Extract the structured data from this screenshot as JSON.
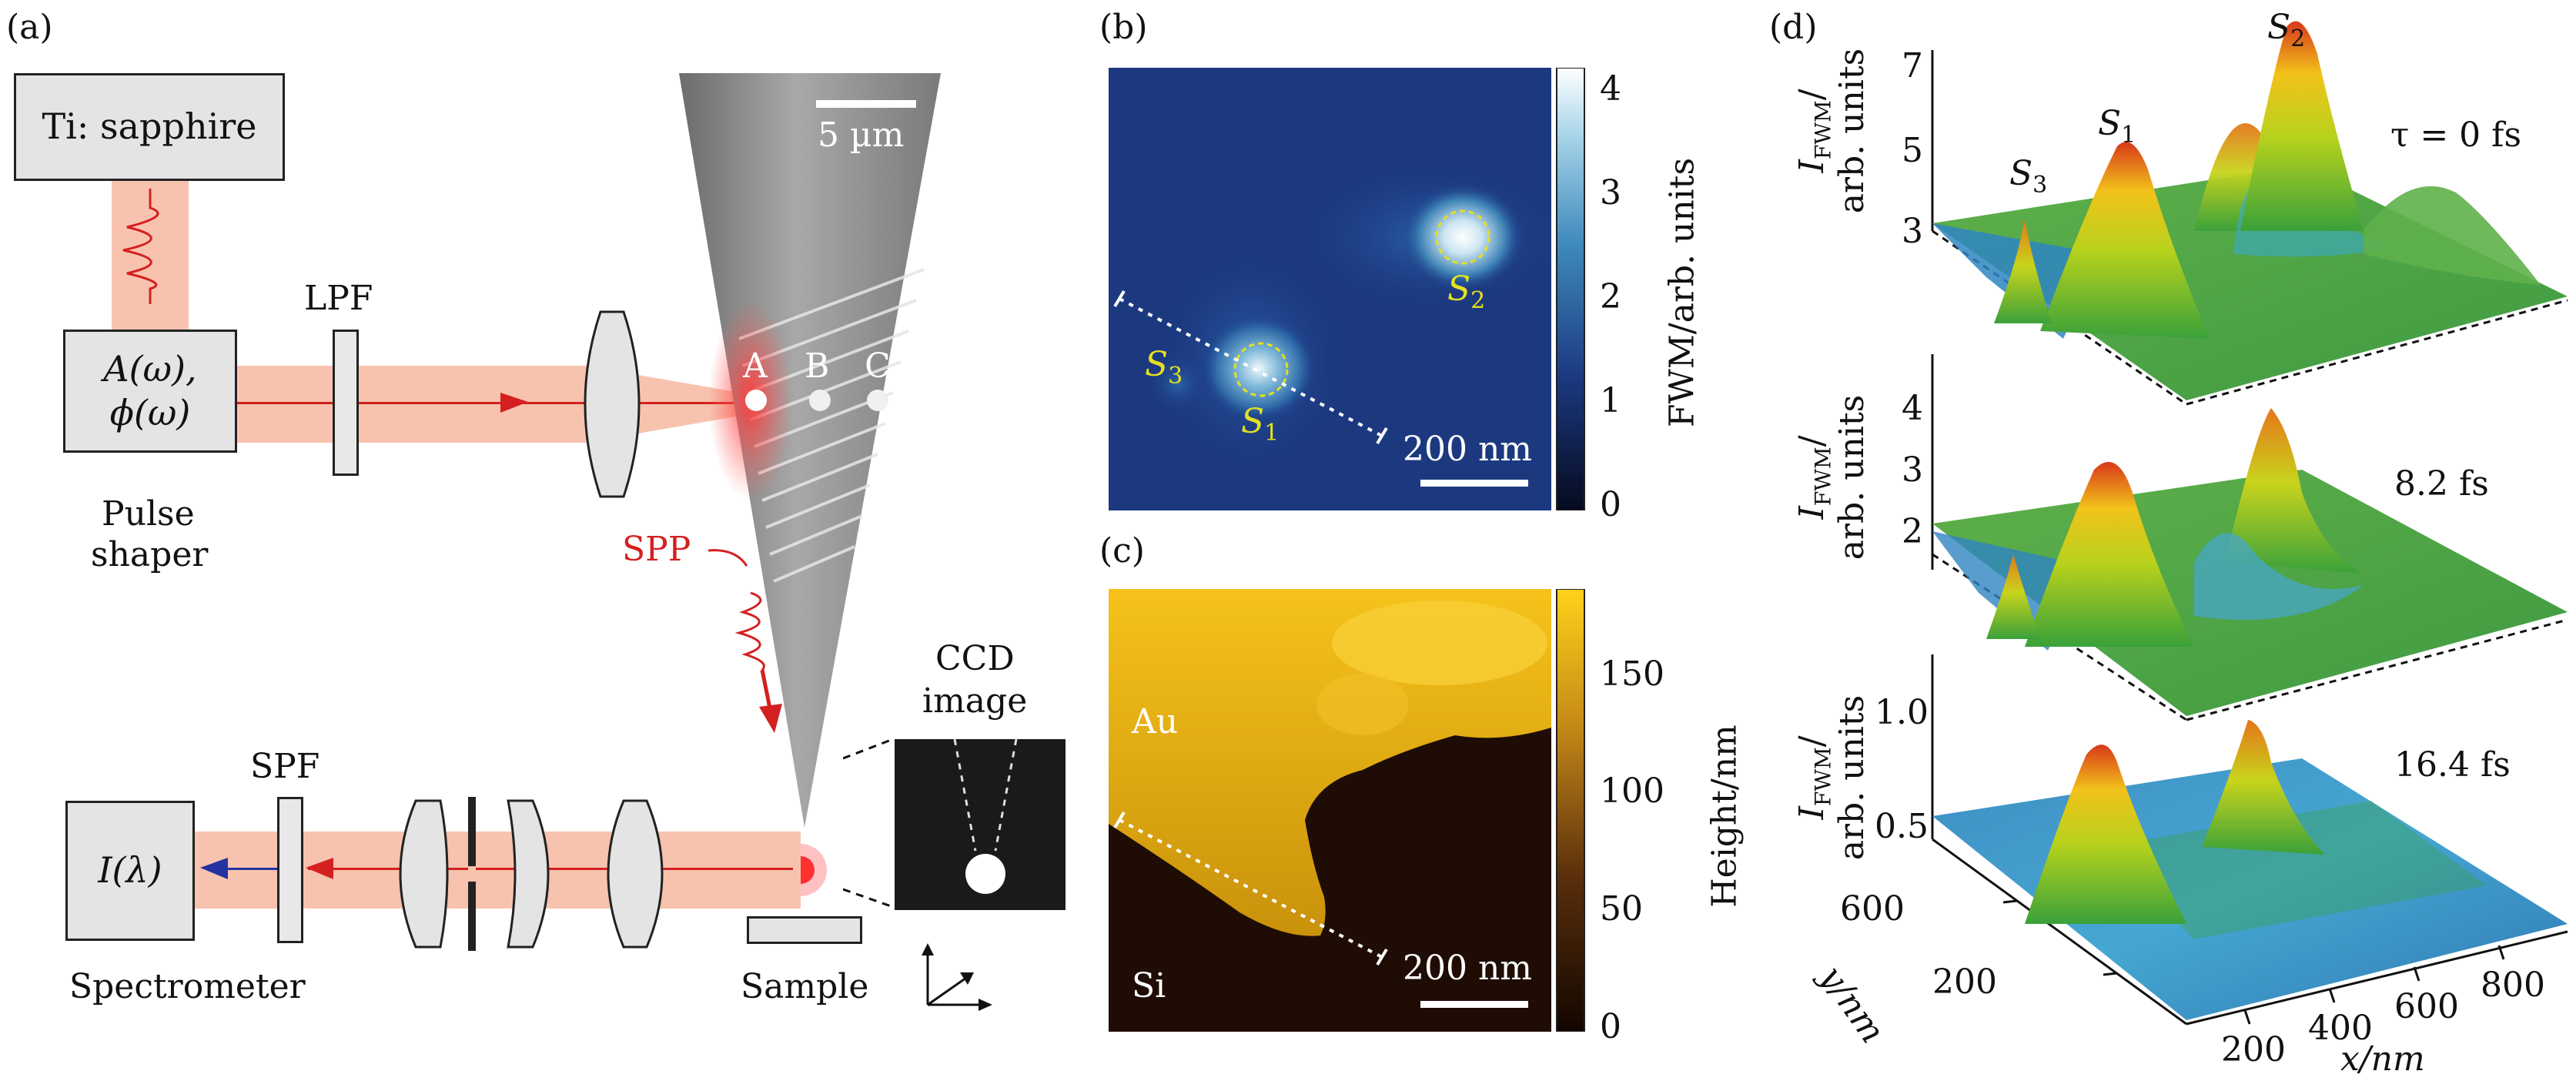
{
  "panel_labels": {
    "a": "(a)",
    "b": "(b)",
    "c": "(c)",
    "d": "(d)"
  },
  "setup": {
    "laser": "Ti: sapphire",
    "lpf": "LPF",
    "shaper_line1": "A(ω),",
    "shaper_line2": "ϕ(ω)",
    "shaper_caption_1": "Pulse",
    "shaper_caption_2": "shaper",
    "spp": "SPP",
    "scale_5um": "5 µm",
    "point_a": "A",
    "point_b": "B",
    "point_c": "C",
    "ccd_1": "CCD",
    "ccd_2": "image",
    "spf": "SPF",
    "spectrometer_box": "I(λ)",
    "spectrometer": "Spectrometer",
    "sample": "Sample"
  },
  "map_b": {
    "colorbar_label": "FWM/arb. units",
    "ticks": [
      "0",
      "1",
      "2",
      "3",
      "4"
    ],
    "scale": "200 nm",
    "s1": "S",
    "s1_sub": "1",
    "s2": "S",
    "s2_sub": "2",
    "s3": "S",
    "s3_sub": "3"
  },
  "map_c": {
    "colorbar_label": "Height/nm",
    "ticks": [
      "0",
      "50",
      "100",
      "150"
    ],
    "scale": "200 nm",
    "au": "Au",
    "si": "Si"
  },
  "surfaces": {
    "top": {
      "ticks": [
        "3",
        "5",
        "7"
      ],
      "tau": "τ = 0 fs",
      "s1": "S",
      "s1_sub": "1",
      "s2": "S",
      "s2_sub": "2",
      "s3": "S",
      "s3_sub": "3"
    },
    "mid": {
      "ticks": [
        "2",
        "3",
        "4"
      ],
      "tau": "8.2 fs"
    },
    "bot": {
      "ticks": [
        "0.5",
        "1.0"
      ],
      "tau": "16.4 fs"
    },
    "ylabel_1": "I",
    "ylabel_sub": "FWM",
    "ylabel_2": "arb. units",
    "x_ticks": [
      "200",
      "400",
      "600",
      "800"
    ],
    "y_ticks": [
      "200",
      "600"
    ],
    "xlabel": "x/nm",
    "ylabel_axis": "y/nm"
  }
}
